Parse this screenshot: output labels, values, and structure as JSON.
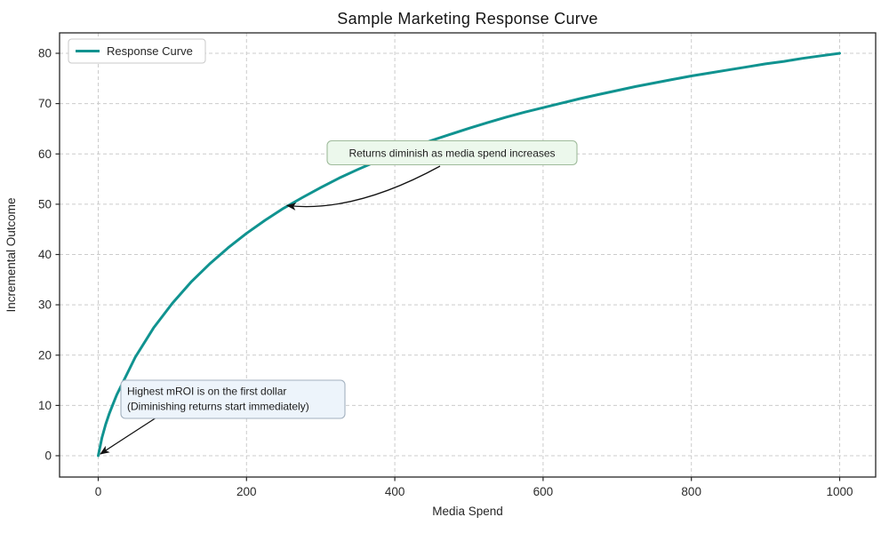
{
  "chart_data": {
    "type": "line",
    "title": "Sample Marketing Response Curve",
    "xlabel": "Media Spend",
    "ylabel": "Incremental Outcome",
    "xlim": [
      -55,
      1050
    ],
    "ylim": [
      -4.2,
      84.2
    ],
    "x_ticks": [
      0,
      200,
      400,
      600,
      800,
      1000
    ],
    "y_ticks": [
      0,
      10,
      20,
      30,
      40,
      50,
      60,
      70,
      80
    ],
    "grid": "dashed",
    "grid_color": "#cccccc",
    "legend_position": "upper-left",
    "series": [
      {
        "name": "Response Curve",
        "color": "#109390",
        "points": [
          [
            0,
            0
          ],
          [
            5,
            3.6
          ],
          [
            10,
            6.2
          ],
          [
            15,
            8.4
          ],
          [
            20,
            10.3
          ],
          [
            25,
            12.1
          ],
          [
            50,
            19.6
          ],
          [
            75,
            25.5
          ],
          [
            100,
            30.3
          ],
          [
            125,
            34.5
          ],
          [
            150,
            38.1
          ],
          [
            175,
            41.3
          ],
          [
            200,
            44.2
          ],
          [
            225,
            46.8
          ],
          [
            250,
            49.2
          ],
          [
            275,
            51.3
          ],
          [
            300,
            53.3
          ],
          [
            325,
            55.2
          ],
          [
            350,
            56.9
          ],
          [
            375,
            58.5
          ],
          [
            400,
            60.0
          ],
          [
            425,
            61.4
          ],
          [
            450,
            62.7
          ],
          [
            475,
            63.9
          ],
          [
            500,
            65.1
          ],
          [
            525,
            66.2
          ],
          [
            550,
            67.3
          ],
          [
            575,
            68.3
          ],
          [
            600,
            69.2
          ],
          [
            625,
            70.1
          ],
          [
            650,
            71.0
          ],
          [
            675,
            71.8
          ],
          [
            700,
            72.6
          ],
          [
            725,
            73.4
          ],
          [
            750,
            74.1
          ],
          [
            775,
            74.8
          ],
          [
            800,
            75.5
          ],
          [
            825,
            76.1
          ],
          [
            850,
            76.7
          ],
          [
            875,
            77.3
          ],
          [
            900,
            77.9
          ],
          [
            925,
            78.4
          ],
          [
            950,
            79.0
          ],
          [
            975,
            79.5
          ],
          [
            1000,
            80.0
          ]
        ]
      }
    ],
    "annotations": [
      {
        "text": "Returns diminish as media spend increases",
        "target_xy": [
          250,
          50
        ],
        "box_color": "#ecf8ec",
        "border_color": "#9fbb9b"
      },
      {
        "lines": [
          "Highest mROI is on the first dollar",
          "(Diminishing returns start immediately)"
        ],
        "target_xy": [
          0,
          0
        ],
        "box_color": "#edf4fb",
        "border_color": "#a3b1bf"
      }
    ]
  }
}
